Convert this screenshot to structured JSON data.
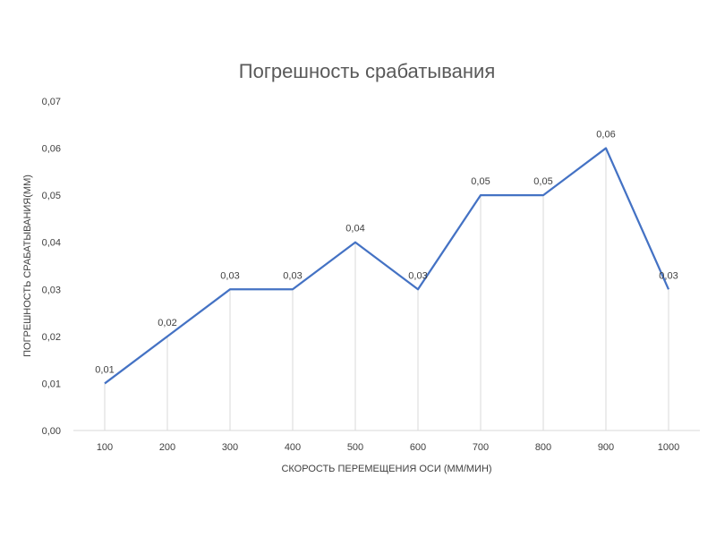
{
  "chart_data": {
    "type": "line",
    "title": "Погрешность срабатывания",
    "xlabel": "СКОРОСТЬ ПЕРЕМЕЩЕНИЯ ОСИ (ММ/МИН)",
    "ylabel": "ПОГРЕШНОСТЬ СРАБАТЫВАНИЯ(ММ)",
    "categories": [
      "100",
      "200",
      "300",
      "400",
      "500",
      "600",
      "700",
      "800",
      "900",
      "1000"
    ],
    "series": [
      {
        "values": [
          0.01,
          0.02,
          0.03,
          0.03,
          0.04,
          0.03,
          0.05,
          0.05,
          0.06,
          0.03
        ]
      }
    ],
    "data_labels": [
      "0,01",
      "0,02",
      "0,03",
      "0,03",
      "0,04",
      "0,03",
      "0,05",
      "0,05",
      "0,06",
      "0,03"
    ],
    "y_ticks": [
      "0,00",
      "0,01",
      "0,02",
      "0,03",
      "0,04",
      "0,05",
      "0,06",
      "0,07"
    ],
    "ylim": [
      0,
      0.07
    ],
    "grid": "vertical drop lines",
    "line_color": "#4472C4",
    "dropline_color": "#D9D9D9"
  }
}
